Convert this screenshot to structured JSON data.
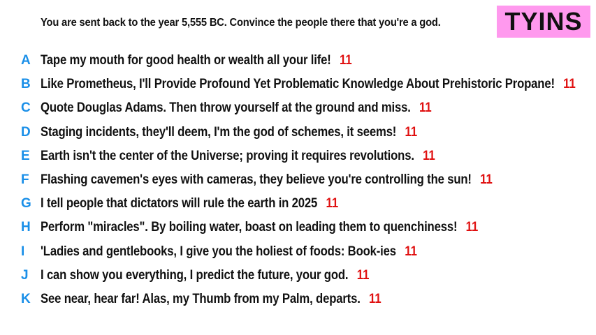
{
  "prompt": "You are sent back to the year 5,555 BC. Convince the people there that you're a god.",
  "logo": "TYINS",
  "colors": {
    "letter": "#1a8fe8",
    "score": "#e01010",
    "logo_bg": "#ff99ee",
    "logo_text": "#111111"
  },
  "answers": [
    {
      "letter": "A",
      "text": "Tape my mouth for good health or wealth all your life!",
      "score": "11"
    },
    {
      "letter": "B",
      "text": "Like Prometheus, I'll Provide Profound Yet Problematic Knowledge About Prehistoric Propane!",
      "score": "11"
    },
    {
      "letter": "C",
      "text": "Quote Douglas Adams. Then throw yourself at the ground and miss.",
      "score": "11"
    },
    {
      "letter": "D",
      "text": "Staging incidents, they'll deem, I'm the god of schemes, it seems!",
      "score": "11"
    },
    {
      "letter": "E",
      "text": "Earth isn't the center of the Universe; proving it requires revolutions.",
      "score": "11"
    },
    {
      "letter": "F",
      "text": "Flashing cavemen's eyes with cameras, they believe you're controlling the sun!",
      "score": "11"
    },
    {
      "letter": "G",
      "text": "I tell people that dictators will rule the earth in 2025",
      "score": "11"
    },
    {
      "letter": "H",
      "text": "Perform \"miracles\". By boiling water, boast on leading them to quenchiness!",
      "score": "11"
    },
    {
      "letter": "I",
      "text": "'Ladies and gentlebooks, I give you the holiest of foods: Book-ies",
      "score": "11"
    },
    {
      "letter": "J",
      "text": "I can show you everything, I predict the future, your god.",
      "score": "11"
    },
    {
      "letter": "K",
      "text": "See near, hear far! Alas, my Thumb from my Palm, departs.",
      "score": "11"
    }
  ]
}
